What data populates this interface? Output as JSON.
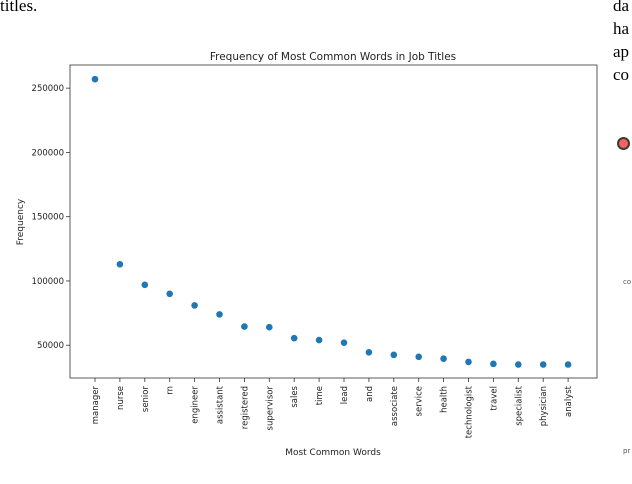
{
  "page": {
    "left_fragment": "titles.",
    "right_fragments": [
      "da",
      "ha",
      "ap",
      "co"
    ],
    "side_labels": [
      "co",
      "pr"
    ]
  },
  "chart_data": {
    "type": "scatter",
    "title": "Frequency of Most Common Words in Job Titles",
    "xlabel": "Most Common Words",
    "ylabel": "Frequency",
    "color": "#1f77b4",
    "categories": [
      "manager",
      "nurse",
      "senior",
      "rn",
      "engineer",
      "assistant",
      "registered",
      "supervisor",
      "sales",
      "time",
      "lead",
      "and",
      "associate",
      "service",
      "health",
      "technologist",
      "travel",
      "specialist",
      "physician",
      "analyst"
    ],
    "values": [
      257000,
      113000,
      97000,
      90000,
      81000,
      74000,
      64500,
      64000,
      55500,
      54000,
      52000,
      44500,
      42500,
      41000,
      39500,
      37000,
      35500,
      35000,
      35000,
      35000
    ],
    "yticks": [
      50000,
      100000,
      150000,
      200000,
      250000
    ],
    "ylim": [
      24500,
      268000
    ],
    "grid": false
  }
}
